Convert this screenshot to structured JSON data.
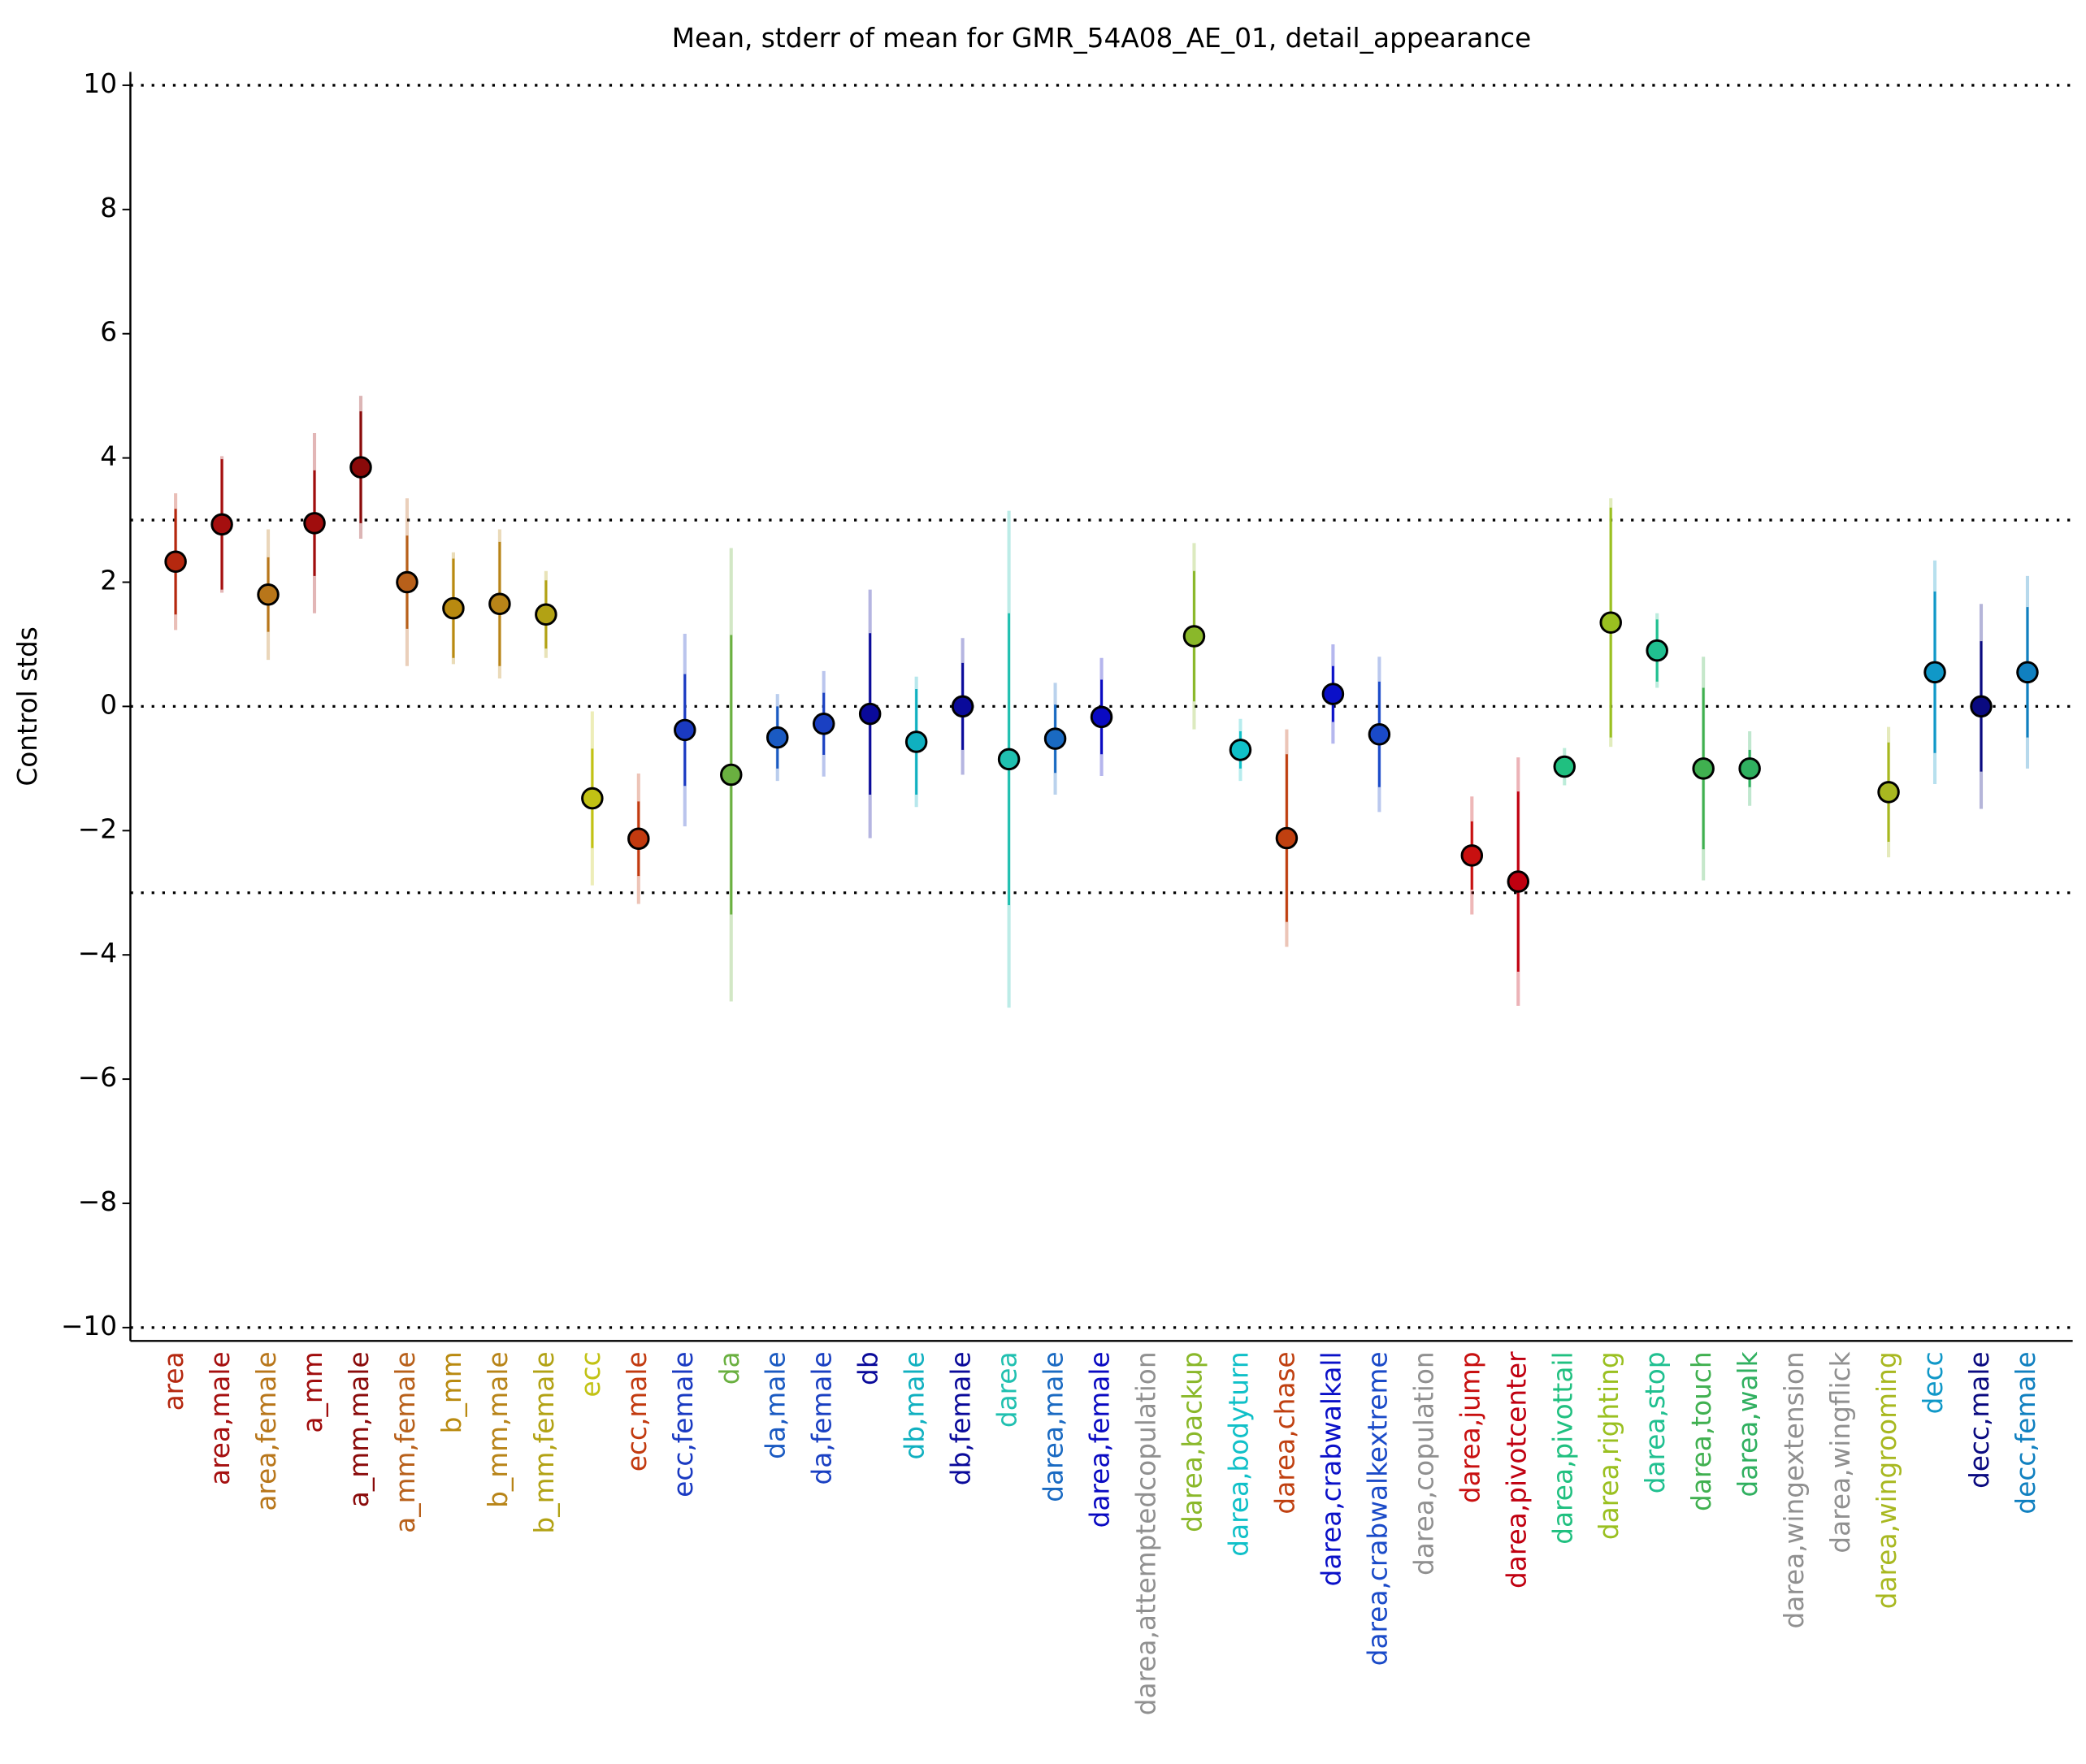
{
  "chart_data": {
    "type": "errorbar",
    "title": "Mean, stderr of mean for GMR_54A08_AE_01, detail_appearance",
    "y_label": "Control stds",
    "categories": [
      "area",
      "area,male",
      "area,female",
      "a_mm",
      "a_mm,male",
      "a_mm,female",
      "b_mm",
      "b_mm,male",
      "b_mm,female",
      "ecc",
      "ecc,male",
      "ecc,female",
      "da",
      "da,male",
      "da,female",
      "db",
      "db,male",
      "db,female",
      "darea",
      "darea,male",
      "darea,female",
      "darea,attemptedcopulation",
      "darea,backup",
      "darea,bodyturn",
      "darea,chase",
      "darea,crabwalkall",
      "darea,crabwalkextreme",
      "darea,copulation",
      "darea,jump",
      "darea,pivotcenter",
      "darea,pivottail",
      "darea,righting",
      "darea,stop",
      "darea,touch",
      "darea,walk",
      "darea,wingextension",
      "darea,wingflick",
      "darea,wingrooming",
      "decc",
      "decc,male",
      "decc,female"
    ],
    "values": [
      2.33,
      2.93,
      1.8,
      2.95,
      3.85,
      2.0,
      1.58,
      1.65,
      1.48,
      -1.48,
      -2.13,
      -0.38,
      -1.1,
      -0.5,
      -0.28,
      -0.12,
      -0.57,
      0.0,
      -0.85,
      -0.52,
      -0.17,
      null,
      1.13,
      -0.7,
      -2.12,
      0.2,
      -0.45,
      null,
      -2.4,
      -2.82,
      -0.97,
      1.35,
      0.9,
      -1.0,
      -1.0,
      null,
      null,
      -1.38,
      0.55,
      0.0,
      0.55
    ],
    "errors": [
      0.85,
      1.05,
      0.6,
      0.85,
      0.9,
      0.75,
      0.8,
      1.0,
      0.55,
      0.8,
      0.6,
      0.9,
      2.25,
      0.5,
      0.5,
      1.3,
      0.85,
      0.7,
      2.35,
      0.55,
      0.6,
      null,
      1.05,
      0.3,
      1.35,
      0.45,
      0.85,
      null,
      0.55,
      1.45,
      0.15,
      1.85,
      0.5,
      1.3,
      0.3,
      null,
      null,
      0.8,
      1.3,
      1.05,
      1.05
    ],
    "spread": [
      1.1,
      1.1,
      1.05,
      1.45,
      1.15,
      1.35,
      0.9,
      1.2,
      0.7,
      1.4,
      1.05,
      1.55,
      3.65,
      0.7,
      0.85,
      2.0,
      1.05,
      1.1,
      4.0,
      0.9,
      0.95,
      null,
      1.5,
      0.5,
      1.75,
      0.8,
      1.25,
      null,
      0.95,
      2.0,
      0.3,
      2.0,
      0.6,
      1.8,
      0.6,
      null,
      null,
      1.05,
      1.8,
      1.65,
      1.55
    ],
    "colors": [
      "#b5280f",
      "#a50f0f",
      "#b8761a",
      "#a00d0d",
      "#8a0a0a",
      "#b8601a",
      "#b98a10",
      "#b88418",
      "#b2a214",
      "#c2c214",
      "#c23a0f",
      "#1a3ac2",
      "#6ab040",
      "#1a5ac2",
      "#1a40c2",
      "#0a0a9a",
      "#10b0c0",
      "#0a0a9a",
      "#20c0b0",
      "#1a6ac2",
      "#0a0ac2",
      "#909090",
      "#8ab82a",
      "#10c0c8",
      "#c04010",
      "#0a10c8",
      "#1a4ac8",
      "#909090",
      "#c81010",
      "#c00010",
      "#20c080",
      "#9ac020",
      "#20c090",
      "#40b050",
      "#30b060",
      "#909090",
      "#909090",
      "#a8b820",
      "#1098c8",
      "#0a0a80",
      "#1080c0"
    ],
    "ylim": [
      -10.2,
      10.2
    ],
    "yticks": [
      {
        "value": -10,
        "label": "−10"
      },
      {
        "value": -8,
        "label": "−8"
      },
      {
        "value": -6,
        "label": "−6"
      },
      {
        "value": -4,
        "label": "−4"
      },
      {
        "value": -2,
        "label": "−2"
      },
      0,
      2,
      4,
      6,
      8,
      10
    ],
    "reference_lines": [
      -10,
      -3,
      0,
      3,
      10
    ]
  }
}
